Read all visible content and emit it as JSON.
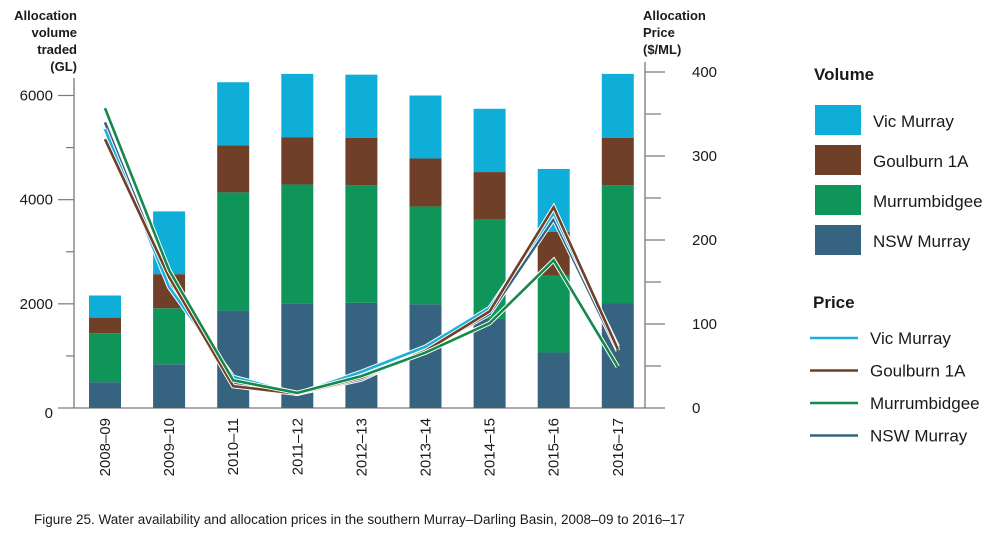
{
  "chart_data": {
    "type": "bar",
    "subtype": "stacked-bar-with-lines",
    "title": "",
    "categories": [
      "2008–09",
      "2009–10",
      "2010–11",
      "2011–12",
      "2012–13",
      "2013–14",
      "2014–15",
      "2015–16",
      "2016–17"
    ],
    "left_axis": {
      "label_lines": [
        "Allocation",
        "volume",
        "traded",
        "(GL)"
      ],
      "range": [
        0,
        6400
      ],
      "ticks": [
        0,
        2000,
        4000,
        6000
      ],
      "minor_ticks": [
        1000,
        3000,
        5000
      ]
    },
    "right_axis": {
      "label_lines": [
        "Allocation",
        "Price",
        "($/ML)"
      ],
      "range": [
        0,
        400
      ],
      "ticks": [
        0,
        100,
        200,
        300,
        400
      ],
      "minor_ticks": [
        50,
        150,
        250,
        350
      ]
    },
    "volume_series": [
      {
        "name": "NSW Murray",
        "color": "#36637f",
        "values": [
          495,
          840,
          1870,
          2010,
          2020,
          1990,
          1710,
          1065,
          2015
        ]
      },
      {
        "name": "Murrumbidgee",
        "color": "#0f955a",
        "values": [
          940,
          1075,
          2270,
          2280,
          2260,
          1880,
          1905,
          1480,
          2265
        ]
      },
      {
        "name": "Goulburn 1A",
        "color": "#6f3f27",
        "values": [
          300,
          655,
          905,
          910,
          910,
          920,
          915,
          835,
          910
        ]
      },
      {
        "name": "Vic Murray",
        "color": "#0eaed8",
        "values": [
          425,
          1205,
          1210,
          1215,
          1210,
          1210,
          1215,
          1210,
          1225
        ]
      }
    ],
    "price_series": [
      {
        "name": "Vic Murray",
        "color": "#1ab0dc",
        "values": [
          332,
          144,
          37,
          17,
          43,
          73,
          119,
          232,
          73
        ]
      },
      {
        "name": "Goulburn 1A",
        "color": "#6f3f27",
        "values": [
          320,
          156,
          26,
          17,
          36,
          68,
          115,
          239,
          70
        ]
      },
      {
        "name": "Murrumbidgee",
        "color": "#14894a",
        "values": [
          357,
          164,
          33,
          18,
          38,
          66,
          101,
          176,
          49
        ]
      },
      {
        "name": "NSW Murray",
        "color": "#36637f",
        "values": [
          340,
          150,
          30,
          17,
          34,
          69,
          112,
          225,
          68
        ]
      }
    ],
    "legend": {
      "placement": "right",
      "volume_title": "Volume",
      "volume_items": [
        "Vic Murray",
        "Goulburn 1A",
        "Murrumbidgee",
        "NSW Murray"
      ],
      "price_title": "Price",
      "price_items": [
        "Vic Murray",
        "Goulburn 1A",
        "Murrumbidgee",
        "NSW Murray"
      ]
    },
    "grid": false
  },
  "caption": "Figure 25. Water availability and allocation prices in the southern Murray–Darling Basin, 2008–09 to 2016–17"
}
